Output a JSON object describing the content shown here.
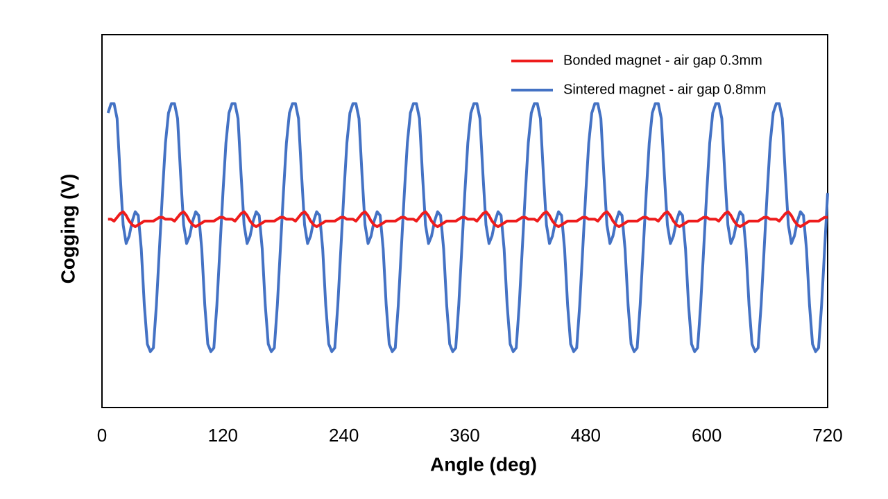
{
  "chart_data": {
    "type": "line",
    "xlabel": "Angle (deg)",
    "ylabel": "Cogging (V)",
    "x": [
      6,
      9,
      12,
      15,
      18,
      21,
      24,
      27,
      30,
      33,
      36,
      39,
      42,
      45,
      48,
      51,
      54,
      57,
      60,
      63,
      66,
      69,
      72,
      75,
      78,
      81,
      84,
      87,
      90,
      93,
      96,
      99,
      102,
      105,
      108,
      111,
      114,
      117,
      120,
      123,
      126,
      129,
      132,
      135,
      138,
      141,
      144,
      147,
      150,
      153,
      156,
      159,
      162,
      165,
      168,
      171,
      174,
      177,
      180,
      183,
      186,
      189,
      192,
      195,
      198,
      201,
      204,
      207,
      210,
      213,
      216,
      219,
      222,
      225,
      228,
      231,
      234,
      237,
      240,
      243,
      246,
      249,
      252,
      255,
      258,
      261,
      264,
      267,
      270,
      273,
      276,
      279,
      282,
      285,
      288,
      291,
      294,
      297,
      300,
      303,
      306,
      309,
      312,
      315,
      318,
      321,
      324,
      327,
      330,
      333,
      336,
      339,
      342,
      345,
      348,
      351,
      354,
      357,
      360,
      363,
      366,
      369,
      372,
      375,
      378,
      381,
      384,
      387,
      390,
      393,
      396,
      399,
      402,
      405,
      408,
      411,
      414,
      417,
      420,
      423,
      426,
      429,
      432,
      435,
      438,
      441,
      444,
      447,
      450,
      453,
      456,
      459,
      462,
      465,
      468,
      471,
      474,
      477,
      480,
      483,
      486,
      489,
      492,
      495,
      498,
      501,
      504,
      507,
      510,
      513,
      516,
      519,
      522,
      525,
      528,
      531,
      534,
      537,
      540,
      543,
      546,
      549,
      552,
      555,
      558,
      561,
      564,
      567,
      570,
      573,
      576,
      579,
      582,
      585,
      588,
      591,
      594,
      597,
      600,
      603,
      606,
      609,
      612,
      615,
      618,
      621,
      624,
      627,
      630,
      633,
      636,
      639,
      642,
      645,
      648,
      651,
      654,
      657,
      660,
      663,
      666,
      669,
      672,
      675,
      678,
      681,
      684,
      687,
      690,
      693,
      696,
      699,
      702,
      705,
      708,
      711,
      714,
      717,
      720
    ],
    "series": [
      {
        "name": "Bonded magnet - air gap 0.3mm",
        "color": "#ee1c1c",
        "values": [
          0.01,
          0.01,
          0.0,
          0.02,
          0.04,
          0.05,
          0.03,
          0.0,
          -0.02,
          -0.03,
          -0.02,
          -0.01,
          0.0,
          0.0,
          0.0,
          0.0,
          0.01,
          0.02,
          0.02,
          0.01,
          0.01,
          0.01,
          0.0,
          0.02,
          0.04,
          0.05,
          0.03,
          0.0,
          -0.02,
          -0.03,
          -0.02,
          -0.01,
          0.0,
          0.0,
          0.0,
          0.0,
          0.01,
          0.02,
          0.02,
          0.01,
          0.01,
          0.01,
          0.0,
          0.02,
          0.04,
          0.05,
          0.03,
          0.0,
          -0.02,
          -0.03,
          -0.02,
          -0.01,
          0.0,
          0.0,
          0.0,
          0.0,
          0.01,
          0.02,
          0.02,
          0.01,
          0.01,
          0.01,
          0.0,
          0.02,
          0.04,
          0.05,
          0.03,
          0.0,
          -0.02,
          -0.03,
          -0.02,
          -0.01,
          0.0,
          0.0,
          0.0,
          0.0,
          0.01,
          0.02,
          0.02,
          0.01,
          0.01,
          0.01,
          0.0,
          0.02,
          0.04,
          0.05,
          0.03,
          0.0,
          -0.02,
          -0.03,
          -0.02,
          -0.01,
          0.0,
          0.0,
          0.0,
          0.0,
          0.01,
          0.02,
          0.02,
          0.01,
          0.01,
          0.01,
          0.0,
          0.02,
          0.04,
          0.05,
          0.03,
          0.0,
          -0.02,
          -0.03,
          -0.02,
          -0.01,
          0.0,
          0.0,
          0.0,
          0.0,
          0.01,
          0.02,
          0.02,
          0.01,
          0.01,
          0.01,
          0.0,
          0.02,
          0.04,
          0.05,
          0.03,
          0.0,
          -0.02,
          -0.03,
          -0.02,
          -0.01,
          0.0,
          0.0,
          0.0,
          0.0,
          0.01,
          0.02,
          0.02,
          0.01,
          0.01,
          0.01,
          0.0,
          0.02,
          0.04,
          0.05,
          0.03,
          0.0,
          -0.02,
          -0.03,
          -0.02,
          -0.01,
          0.0,
          0.0,
          0.0,
          0.0,
          0.01,
          0.02,
          0.02,
          0.01,
          0.01,
          0.01,
          0.0,
          0.02,
          0.04,
          0.05,
          0.03,
          0.0,
          -0.02,
          -0.03,
          -0.02,
          -0.01,
          0.0,
          0.0,
          0.0,
          0.0,
          0.01,
          0.02,
          0.02,
          0.01,
          0.01,
          0.01,
          0.0,
          0.02,
          0.04,
          0.05,
          0.03,
          0.0,
          -0.02,
          -0.03,
          -0.02,
          -0.01,
          0.0,
          0.0,
          0.0,
          0.0,
          0.01,
          0.02,
          0.02,
          0.01,
          0.01,
          0.01,
          0.0,
          0.02,
          0.04,
          0.05,
          0.03,
          0.0,
          -0.02,
          -0.03,
          -0.02,
          -0.01,
          0.0,
          0.0,
          0.0,
          0.0,
          0.01,
          0.02,
          0.02,
          0.01,
          0.01,
          0.01,
          0.0,
          0.02,
          0.04,
          0.05,
          0.03,
          0.0,
          -0.02,
          -0.03,
          -0.02,
          -0.01,
          0.0,
          0.0,
          0.0,
          0.0,
          0.01,
          0.02,
          0.02
        ]
      },
      {
        "name": "Sintered magnet - air gap 0.8mm",
        "color": "#4472c4",
        "values": [
          0.58,
          0.63,
          0.63,
          0.55,
          0.25,
          -0.02,
          -0.12,
          -0.08,
          0.0,
          0.05,
          0.03,
          -0.15,
          -0.45,
          -0.66,
          -0.7,
          -0.68,
          -0.45,
          -0.15,
          0.15,
          0.42,
          0.58,
          0.63,
          0.63,
          0.55,
          0.25,
          -0.02,
          -0.12,
          -0.08,
          0.0,
          0.05,
          0.03,
          -0.15,
          -0.45,
          -0.66,
          -0.7,
          -0.68,
          -0.45,
          -0.15,
          0.15,
          0.42,
          0.58,
          0.63,
          0.63,
          0.55,
          0.25,
          -0.02,
          -0.12,
          -0.08,
          0.0,
          0.05,
          0.03,
          -0.15,
          -0.45,
          -0.66,
          -0.7,
          -0.68,
          -0.45,
          -0.15,
          0.15,
          0.42,
          0.58,
          0.63,
          0.63,
          0.55,
          0.25,
          -0.02,
          -0.12,
          -0.08,
          0.0,
          0.05,
          0.03,
          -0.15,
          -0.45,
          -0.66,
          -0.7,
          -0.68,
          -0.45,
          -0.15,
          0.15,
          0.42,
          0.58,
          0.63,
          0.63,
          0.55,
          0.25,
          -0.02,
          -0.12,
          -0.08,
          0.0,
          0.05,
          0.03,
          -0.15,
          -0.45,
          -0.66,
          -0.7,
          -0.68,
          -0.45,
          -0.15,
          0.15,
          0.42,
          0.58,
          0.63,
          0.63,
          0.55,
          0.25,
          -0.02,
          -0.12,
          -0.08,
          0.0,
          0.05,
          0.03,
          -0.15,
          -0.45,
          -0.66,
          -0.7,
          -0.68,
          -0.45,
          -0.15,
          0.15,
          0.42,
          0.58,
          0.63,
          0.63,
          0.55,
          0.25,
          -0.02,
          -0.12,
          -0.08,
          0.0,
          0.05,
          0.03,
          -0.15,
          -0.45,
          -0.66,
          -0.7,
          -0.68,
          -0.45,
          -0.15,
          0.15,
          0.42,
          0.58,
          0.63,
          0.63,
          0.55,
          0.25,
          -0.02,
          -0.12,
          -0.08,
          0.0,
          0.05,
          0.03,
          -0.15,
          -0.45,
          -0.66,
          -0.7,
          -0.68,
          -0.45,
          -0.15,
          0.15,
          0.42,
          0.58,
          0.63,
          0.63,
          0.55,
          0.25,
          -0.02,
          -0.12,
          -0.08,
          0.0,
          0.05,
          0.03,
          -0.15,
          -0.45,
          -0.66,
          -0.7,
          -0.68,
          -0.45,
          -0.15,
          0.15,
          0.42,
          0.58,
          0.63,
          0.63,
          0.55,
          0.25,
          -0.02,
          -0.12,
          -0.08,
          0.0,
          0.05,
          0.03,
          -0.15,
          -0.45,
          -0.66,
          -0.7,
          -0.68,
          -0.45,
          -0.15,
          0.15,
          0.42,
          0.58,
          0.63,
          0.63,
          0.55,
          0.25,
          -0.02,
          -0.12,
          -0.08,
          0.0,
          0.05,
          0.03,
          -0.15,
          -0.45,
          -0.66,
          -0.7,
          -0.68,
          -0.45,
          -0.15,
          0.15,
          0.42,
          0.58,
          0.63,
          0.63,
          0.55,
          0.25,
          -0.02,
          -0.12,
          -0.08,
          0.0,
          0.05,
          0.03,
          -0.15,
          -0.45,
          -0.66,
          -0.7,
          -0.68,
          -0.45,
          -0.15,
          0.15
        ]
      }
    ],
    "xlim": [
      0,
      720
    ],
    "xticks": [
      0,
      120,
      240,
      360,
      480,
      600,
      720
    ],
    "ylim": [
      -1,
      1
    ],
    "yticks": [],
    "grid": false,
    "legend": "upper right"
  }
}
